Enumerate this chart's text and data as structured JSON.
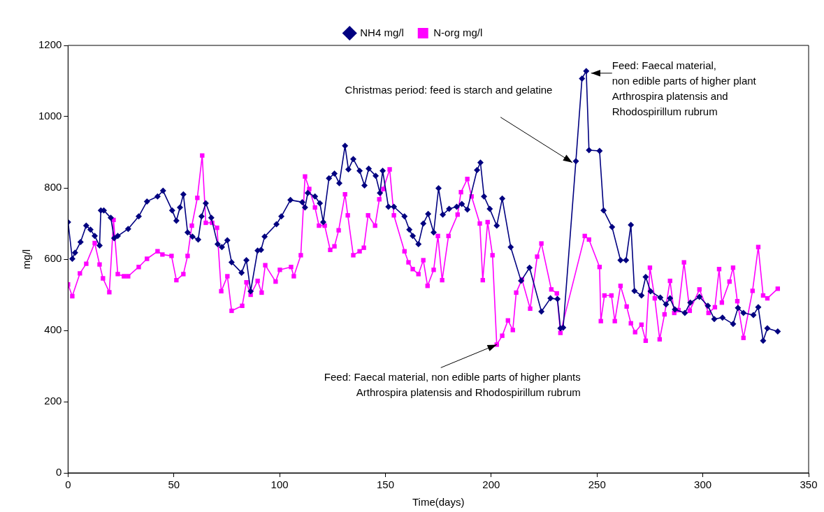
{
  "chart_data": {
    "type": "line",
    "xlabel": "Time(days)",
    "ylabel": "mg/l",
    "xlim": [
      0,
      350
    ],
    "xticks": [
      0,
      50,
      100,
      150,
      200,
      250,
      300,
      350
    ],
    "ylim": [
      0,
      1200
    ],
    "yticks": [
      0,
      200,
      400,
      600,
      800,
      1000,
      1200
    ],
    "grid": false,
    "legend": "top",
    "series": [
      {
        "name": "NH4 mg/l",
        "color": "#000080",
        "marker": "diamond",
        "x": [
          0,
          2,
          3.3,
          5.9,
          8.6,
          10.6,
          12.6,
          14.9,
          15.5,
          16.9,
          20.2,
          21.8,
          23.5,
          28.4,
          33.4,
          37.3,
          42.3,
          44.9,
          49.2,
          51.2,
          52.9,
          54.5,
          56.5,
          58.8,
          61.5,
          63.1,
          65.1,
          67.7,
          70.7,
          72.7,
          75.3,
          77.3,
          82,
          84.3,
          86.3,
          89.6,
          91.2,
          92.9,
          98.5,
          100.8,
          105.1,
          110.7,
          112,
          113.3,
          116.7,
          119,
          120.6,
          123.3,
          125.9,
          128.2,
          130.9,
          132.5,
          134.8,
          137.8,
          140.1,
          142.1,
          145.4,
          147.4,
          148.7,
          151.4,
          154,
          159,
          161.3,
          162.9,
          165.6,
          167.9,
          170.2,
          172.8,
          175.1,
          177.1,
          180.1,
          183.7,
          186.1,
          188.7,
          193.3,
          194.9,
          196.6,
          199.3,
          202.6,
          205.2,
          209.2,
          214.1,
          218.1,
          223.7,
          228,
          231.3,
          232.7,
          234,
          240,
          242.9,
          244.9,
          246.2,
          251.2,
          253.1,
          257.1,
          261.1,
          263.7,
          266,
          267.7,
          271,
          273,
          275.3,
          279.9,
          282.6,
          284.5,
          286.8,
          291.5,
          294.1,
          298.4,
          302.4,
          305.4,
          309.3,
          314.3,
          316.6,
          319.2,
          323.9,
          326.2,
          328.5,
          330.5,
          335.4
        ],
        "values": [
          704,
          601,
          618,
          648,
          694,
          683,
          665,
          638,
          737,
          737,
          716,
          659,
          665,
          685,
          720,
          762,
          776,
          792,
          737,
          708,
          745,
          782,
          675,
          663,
          655,
          720,
          757,
          716,
          642,
          634,
          653,
          591,
          562,
          597,
          510,
          624,
          626,
          663,
          698,
          720,
          766,
          760,
          745,
          786,
          776,
          757,
          704,
          827,
          840,
          813,
          918,
          852,
          881,
          848,
          807,
          854,
          834,
          786,
          848,
          747,
          747,
          720,
          683,
          665,
          642,
          700,
          727,
          675,
          799,
          725,
          741,
          747,
          755,
          739,
          850,
          871,
          776,
          741,
          694,
          770,
          634,
          539,
          576,
          453,
          490,
          488,
          406,
          408,
          875,
          1107,
          1128,
          906,
          904,
          737,
          690,
          597,
          597,
          696,
          511,
          498,
          550,
          510,
          492,
          473,
          490,
          459,
          449,
          478,
          494,
          469,
          432,
          436,
          418,
          463,
          449,
          443,
          465,
          371,
          406,
          397
        ]
      },
      {
        "name": "N-org mg/l",
        "color": "#ff00ff",
        "marker": "square",
        "x": [
          0,
          2,
          5.6,
          8.6,
          12.6,
          14.9,
          16.5,
          19.5,
          21.5,
          23.5,
          26.4,
          28.4,
          33.4,
          37.3,
          42.3,
          44.6,
          48.9,
          51.2,
          54.5,
          56.5,
          58.5,
          61.1,
          63.4,
          65.1,
          68.1,
          70.4,
          72.4,
          75.3,
          77.3,
          82.3,
          84.3,
          86.3,
          89.6,
          91.5,
          93.2,
          98.1,
          100.1,
          105.4,
          106.7,
          110,
          112,
          114,
          116.7,
          118.6,
          121.3,
          123.9,
          125.9,
          127.9,
          130.9,
          132.2,
          134.8,
          137.8,
          139.8,
          141.8,
          145.1,
          147.1,
          149,
          152,
          154,
          159,
          160.9,
          162.9,
          165.6,
          167.9,
          169.9,
          172.8,
          174.8,
          176.8,
          179.8,
          184.1,
          185.7,
          188.7,
          190.7,
          194.6,
          196,
          198.3,
          200.6,
          202.6,
          205.2,
          207.9,
          210.2,
          211.8,
          214.5,
          218.4,
          221.7,
          223.7,
          228.4,
          231,
          232.7,
          244.2,
          246.2,
          251.2,
          251.8,
          253.5,
          256.8,
          258.4,
          261.1,
          264,
          266,
          268,
          271,
          273,
          275,
          277.3,
          279.6,
          281.9,
          284.5,
          286.5,
          288.5,
          291.1,
          293.8,
          298.4,
          302.7,
          305.7,
          307.7,
          309,
          312.6,
          314.3,
          316.3,
          319.2,
          323.5,
          326.2,
          328.5,
          330.5,
          335.4
        ],
        "values": [
          529,
          496,
          560,
          587,
          645,
          585,
          546,
          507,
          710,
          558,
          552,
          552,
          578,
          601,
          622,
          613,
          609,
          541,
          558,
          609,
          694,
          772,
          891,
          702,
          702,
          688,
          510,
          552,
          455,
          469,
          535,
          500,
          539,
          506,
          583,
          537,
          570,
          578,
          552,
          611,
          832,
          797,
          745,
          694,
          694,
          626,
          636,
          681,
          782,
          723,
          611,
          622,
          632,
          723,
          694,
          768,
          797,
          852,
          723,
          622,
          591,
          572,
          558,
          597,
          525,
          570,
          665,
          541,
          665,
          725,
          788,
          825,
          776,
          700,
          541,
          704,
          611,
          360,
          385,
          428,
          401,
          506,
          543,
          461,
          607,
          644,
          515,
          504,
          393,
          665,
          655,
          578,
          426,
          498,
          498,
          426,
          525,
          467,
          420,
          395,
          416,
          371,
          576,
          490,
          375,
          445,
          539,
          449,
          457,
          591,
          455,
          515,
          449,
          465,
          572,
          478,
          537,
          576,
          482,
          379,
          511,
          634,
          498,
          490,
          517
        ]
      }
    ],
    "annotations": [
      "Christmas period: feed is starch and gelatine",
      {
        "text": "Feed: Faecal material,\nnon edible parts of higher plant\nArthrospira platensis and\nRhodospirillum rubrum",
        "x": 247.2,
        "y": 1122
      },
      {
        "text": "Feed: Faecal material, non edible parts of higher plants\nArthrospira platensis and Rhodospirillum rubrum",
        "x": 202.6,
        "y": 360
      }
    ]
  }
}
